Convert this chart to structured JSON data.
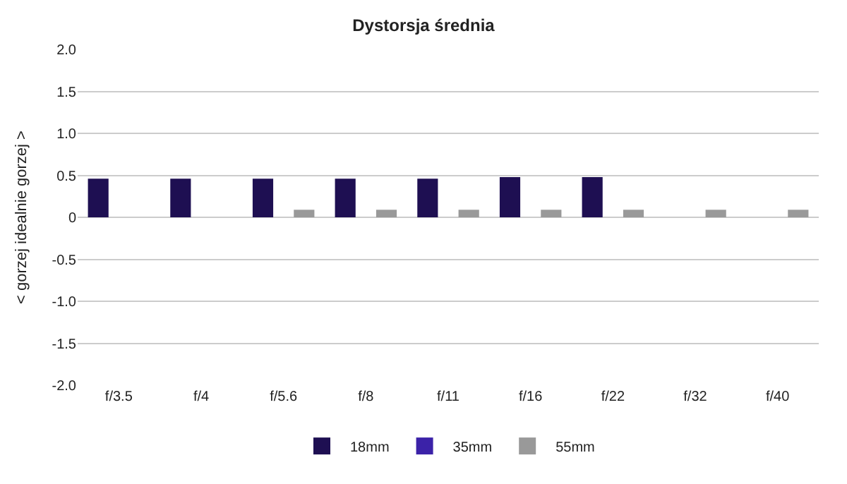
{
  "chart_data": {
    "type": "bar",
    "title": "Dystorsja średnia",
    "ylabel": "< gorzej idealnie gorzej >",
    "categories": [
      "f/3.5",
      "f/4",
      "f/5.6",
      "f/8",
      "f/11",
      "f/16",
      "f/22",
      "f/32",
      "f/40"
    ],
    "series": [
      {
        "name": "18mm",
        "color": "#1e0f52",
        "values": [
          0.46,
          0.46,
          0.46,
          0.46,
          0.46,
          0.48,
          0.48,
          null,
          null
        ]
      },
      {
        "name": "35mm",
        "color": "#3b22a8",
        "values": [
          null,
          null,
          null,
          null,
          null,
          null,
          null,
          null,
          null
        ]
      },
      {
        "name": "55mm",
        "color": "#999999",
        "values": [
          null,
          null,
          0.09,
          0.09,
          0.09,
          0.09,
          0.09,
          0.09,
          0.09
        ]
      }
    ],
    "ylim": [
      -2,
      2
    ],
    "yticks": [
      {
        "value": -2,
        "label": "-2.0"
      },
      {
        "value": -1.5,
        "label": "-1.5"
      },
      {
        "value": -1,
        "label": "-1.0"
      },
      {
        "value": -0.5,
        "label": "-0.5"
      },
      {
        "value": 0,
        "label": "0"
      },
      {
        "value": 0.5,
        "label": "0.5"
      },
      {
        "value": 1,
        "label": "1.0"
      },
      {
        "value": 1.5,
        "label": "1.5"
      },
      {
        "value": 2,
        "label": "2.0"
      }
    ],
    "grid": "y",
    "legend": "bottom"
  }
}
